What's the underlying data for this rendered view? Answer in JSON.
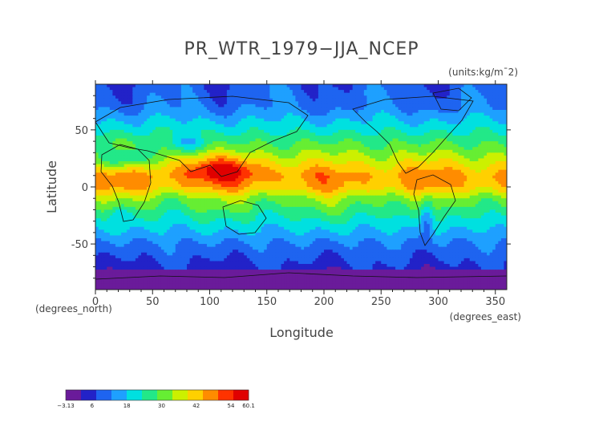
{
  "chart_data": {
    "type": "heatmap",
    "title": "PR_WTR_1979−JJA_NCEP",
    "units": "(units:kg/m¯2)",
    "xlabel": "Longitude",
    "ylabel": "Latitude",
    "x_unit_label": "(degrees_east)",
    "y_unit_label": "(degrees_north)",
    "xlim": [
      0,
      360
    ],
    "ylim": [
      -90,
      90
    ],
    "x_ticks": [
      0,
      50,
      100,
      150,
      200,
      250,
      300,
      350
    ],
    "y_ticks": [
      -50,
      0,
      50
    ],
    "colorbar": {
      "min": -3.13,
      "max": 60.1,
      "ticks": [
        "−3.13",
        "6",
        "18",
        "30",
        "42",
        "54",
        "60.1"
      ],
      "tick_values": [
        -3.13,
        6,
        18,
        30,
        42,
        54,
        60.1
      ],
      "palette": [
        "#6a1b9a",
        "#2222c8",
        "#1e64f0",
        "#1ea0ff",
        "#00e0e0",
        "#22e888",
        "#66ee33",
        "#ccf000",
        "#ffd000",
        "#ff8c00",
        "#ff3300",
        "#e00000"
      ]
    },
    "field_description_lat_profile": {
      "lat": [
        90,
        70,
        50,
        30,
        10,
        0,
        -10,
        -30,
        -50,
        -70,
        -90
      ],
      "value": [
        9,
        12,
        22,
        33,
        46,
        44,
        33,
        22,
        12,
        6,
        0
      ]
    }
  }
}
